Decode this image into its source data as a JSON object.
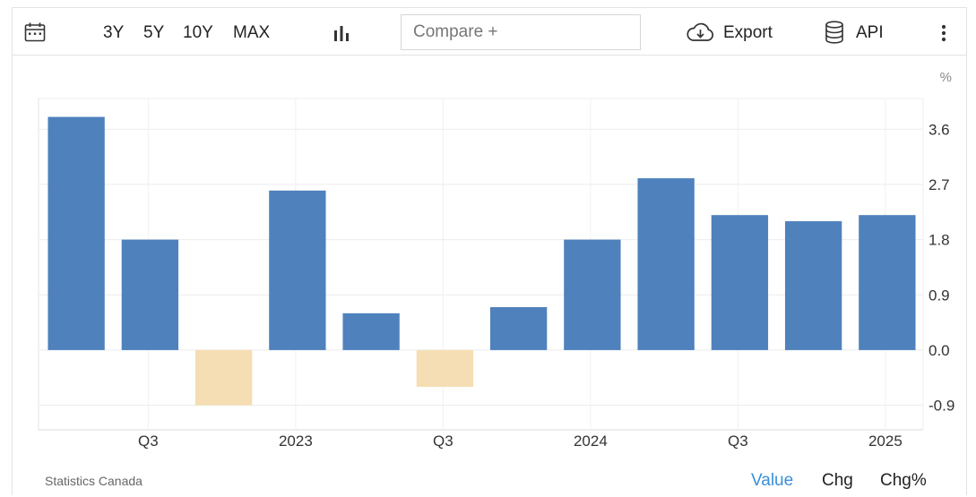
{
  "toolbar": {
    "ranges": [
      "3Y",
      "5Y",
      "10Y",
      "MAX"
    ],
    "compare_placeholder": "Compare +",
    "export_label": "Export",
    "api_label": "API"
  },
  "footer": {
    "source": "Statistics Canada",
    "value_label": "Value",
    "chg_label": "Chg",
    "chgpct_label": "Chg%"
  },
  "colors": {
    "positive": "#4f81bd",
    "negative": "#f5deb3",
    "active_tab": "#3a8fd9"
  },
  "chart_data": {
    "type": "bar",
    "unit_label": "%",
    "values": [
      3.8,
      1.8,
      -0.9,
      2.6,
      0.6,
      -0.6,
      0.7,
      1.8,
      2.8,
      2.2,
      2.1,
      2.2
    ],
    "x_tick_labels": [
      "Q3",
      "2023",
      "Q3",
      "2024",
      "Q3",
      "2025"
    ],
    "y_ticks": [
      3.6,
      2.7,
      1.8,
      0.9,
      0.0,
      -0.9
    ],
    "y_tick_labels": [
      "3.6",
      "2.7",
      "1.8",
      "0.9",
      "0.0",
      "-0.9"
    ],
    "ylim": [
      -1.3,
      4.1
    ],
    "grid": true,
    "y_axis_side": "right"
  }
}
